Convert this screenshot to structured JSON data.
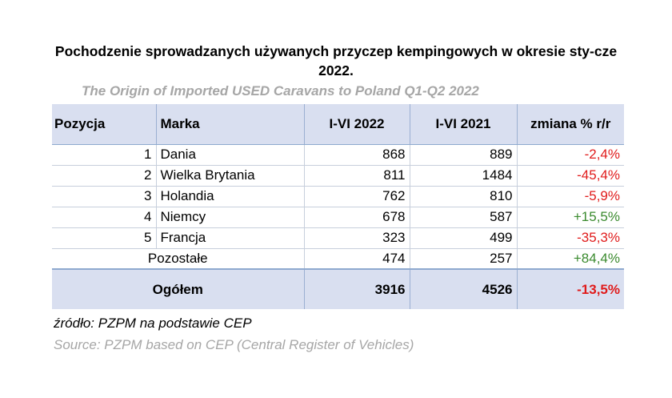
{
  "title": "Pochodzenie sprowadzanych używanych przyczep kempingowych w okresie sty-cze 2022.",
  "subtitle": "The Origin of Imported USED Caravans to Poland Q1-Q2 2022",
  "table": {
    "headers": {
      "position": "Pozycja",
      "brand": "Marka",
      "y2022": "I-VI 2022",
      "y2021": "I-VI 2021",
      "change": "zmiana % r/r"
    },
    "rows": [
      {
        "position": "1",
        "brand": "Dania",
        "y2022": "868",
        "y2021": "889",
        "change": "-2,4%",
        "trend": "negative"
      },
      {
        "position": "2",
        "brand": "Wielka Brytania",
        "y2022": "811",
        "y2021": "1484",
        "change": "-45,4%",
        "trend": "negative"
      },
      {
        "position": "3",
        "brand": "Holandia",
        "y2022": "762",
        "y2021": "810",
        "change": "-5,9%",
        "trend": "negative"
      },
      {
        "position": "4",
        "brand": "Niemcy",
        "y2022": "678",
        "y2021": "587",
        "change": "+15,5%",
        "trend": "positive"
      },
      {
        "position": "5",
        "brand": "Francja",
        "y2022": "323",
        "y2021": "499",
        "change": "-35,3%",
        "trend": "negative"
      }
    ],
    "other": {
      "label": "Pozostałe",
      "y2022": "474",
      "y2021": "257",
      "change": "+84,4%",
      "trend": "positive"
    },
    "total": {
      "label": "Ogółem",
      "y2022": "3916",
      "y2021": "4526",
      "change": "-13,5%",
      "trend": "negative"
    }
  },
  "source_pl": "źródło: PZPM na podstawie CEP",
  "source_en": "Source: PZPM based on CEP (Central Register of Vehicles)",
  "colors": {
    "negative": "#e01b1b",
    "positive": "#3a8a2e",
    "header_bg": "#d9dff0",
    "muted_text": "#a6a6a6"
  }
}
